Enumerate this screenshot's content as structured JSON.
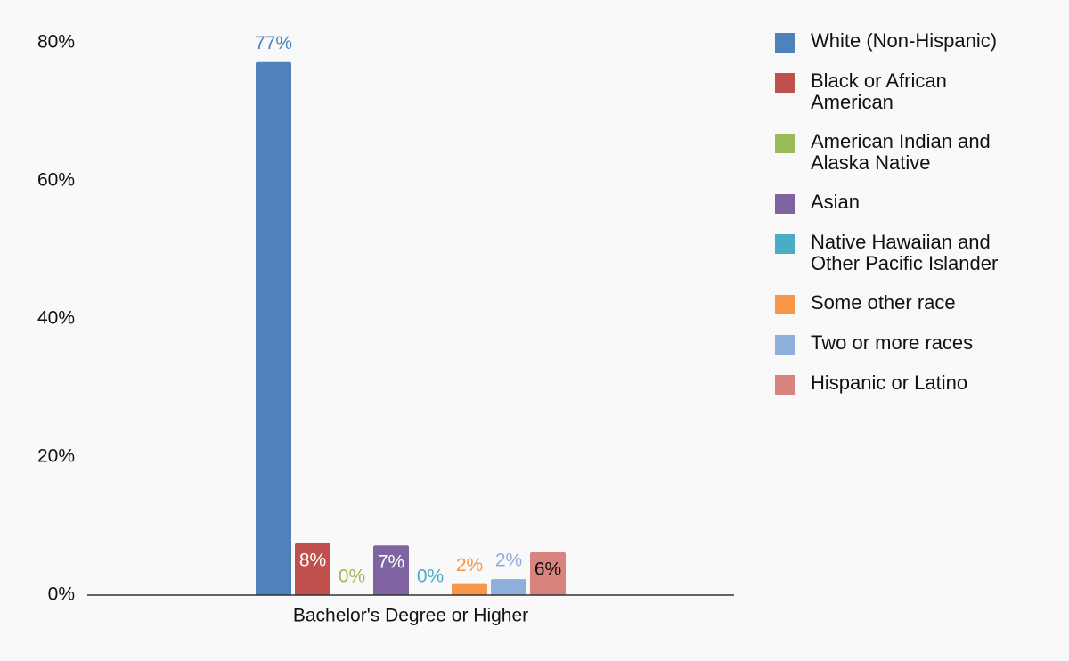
{
  "chart_data": {
    "type": "bar",
    "categories": [
      "Bachelor's Degree or Higher"
    ],
    "series": [
      {
        "name": "White (Non-Hispanic)",
        "color": "#4f81bd",
        "values": [
          77.2
        ],
        "value_labels": [
          "77%"
        ]
      },
      {
        "name": "Black or African American",
        "color": "#c0504d",
        "values": [
          7.5
        ],
        "value_labels": [
          "8%"
        ]
      },
      {
        "name": "American Indian and Alaska Native",
        "color": "#9bbb59",
        "values": [
          0
        ],
        "value_labels": [
          "0%"
        ]
      },
      {
        "name": "Asian",
        "color": "#8064a2",
        "values": [
          7.2
        ],
        "value_labels": [
          "7%"
        ]
      },
      {
        "name": "Native Hawaiian and Other Pacific Islander",
        "color": "#4bacc6",
        "values": [
          0
        ],
        "value_labels": [
          "0%"
        ]
      },
      {
        "name": "Some other race",
        "color": "#f79646",
        "values": [
          1.6
        ],
        "value_labels": [
          "2%"
        ]
      },
      {
        "name": "Two or more races",
        "color": "#8eaedb",
        "values": [
          2.3
        ],
        "value_labels": [
          "2%"
        ]
      },
      {
        "name": "Hispanic or Latino",
        "color": "#d9837f",
        "values": [
          6.2
        ],
        "value_labels": [
          "6%"
        ]
      }
    ],
    "ylim": [
      0,
      80
    ],
    "yticks": [
      {
        "value": 0,
        "label": "0%"
      },
      {
        "value": 20,
        "label": "20%"
      },
      {
        "value": 40,
        "label": "40%"
      },
      {
        "value": 60,
        "label": "60%"
      },
      {
        "value": 80,
        "label": "80%"
      }
    ],
    "grid": false,
    "legend": "right"
  }
}
